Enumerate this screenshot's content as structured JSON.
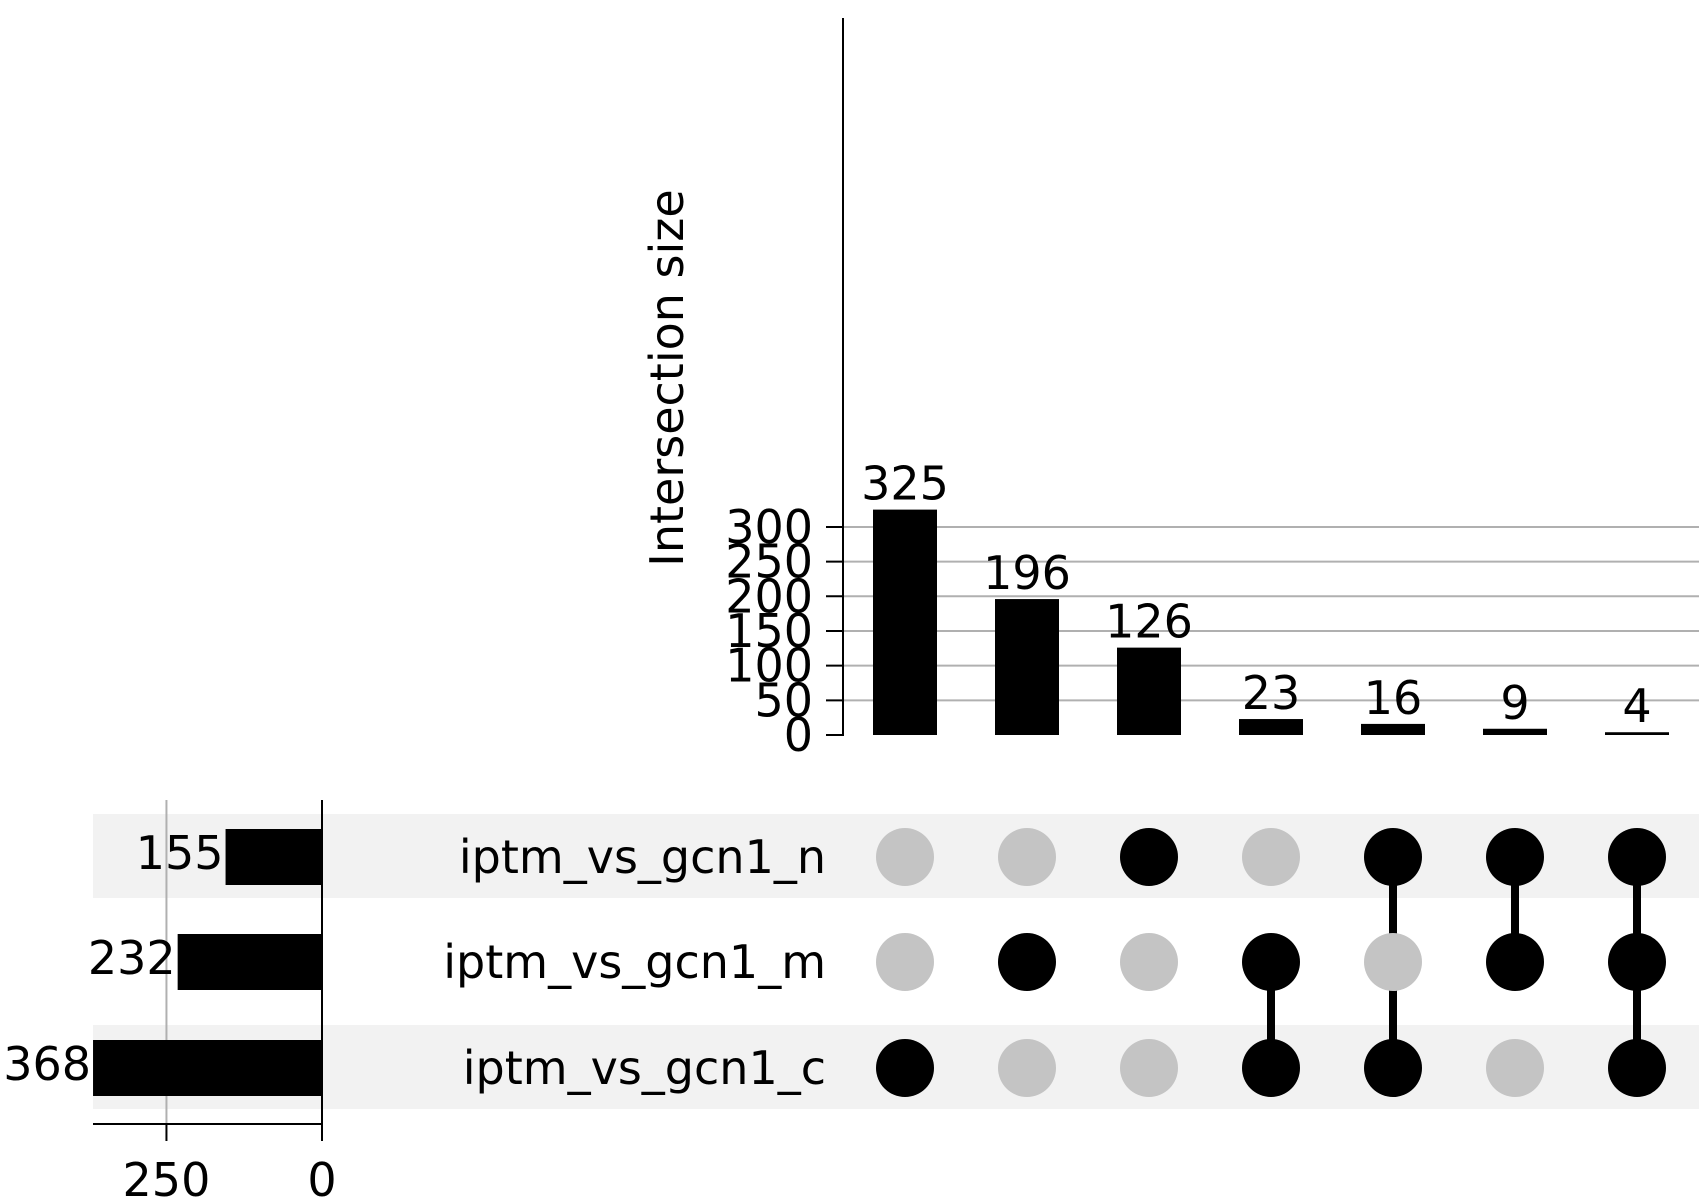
{
  "chart_data": {
    "type": "upset",
    "intersections": {
      "ylabel": "Intersection size",
      "ylim": [
        0,
        340
      ],
      "yticks": [
        0,
        50,
        100,
        150,
        200,
        250,
        300
      ],
      "grid": true,
      "values": [
        325,
        196,
        126,
        23,
        16,
        9,
        4
      ],
      "labels": [
        "325",
        "196",
        "126",
        "23",
        "16",
        "9",
        "4"
      ],
      "membership": [
        [
          "iptm_vs_gcn1_c"
        ],
        [
          "iptm_vs_gcn1_m"
        ],
        [
          "iptm_vs_gcn1_n"
        ],
        [
          "iptm_vs_gcn1_m",
          "iptm_vs_gcn1_c"
        ],
        [
          "iptm_vs_gcn1_n",
          "iptm_vs_gcn1_c"
        ],
        [
          "iptm_vs_gcn1_n",
          "iptm_vs_gcn1_m"
        ],
        [
          "iptm_vs_gcn1_n",
          "iptm_vs_gcn1_m",
          "iptm_vs_gcn1_c"
        ]
      ]
    },
    "sets": {
      "names": [
        "iptm_vs_gcn1_n",
        "iptm_vs_gcn1_m",
        "iptm_vs_gcn1_c"
      ],
      "sizes": [
        155,
        232,
        368
      ],
      "size_labels": [
        "155",
        "232",
        "368"
      ],
      "xticks": [
        250,
        0
      ],
      "xtick_labels": [
        "250",
        "0"
      ],
      "xlim_reversed": [
        0,
        368
      ],
      "grid": true
    },
    "colors": {
      "bar": "#000000",
      "active_dot": "#000000",
      "inactive_dot": "#c4c4c4",
      "row_shade": "#f2f2f2",
      "grid": "#b0b0b0"
    }
  }
}
